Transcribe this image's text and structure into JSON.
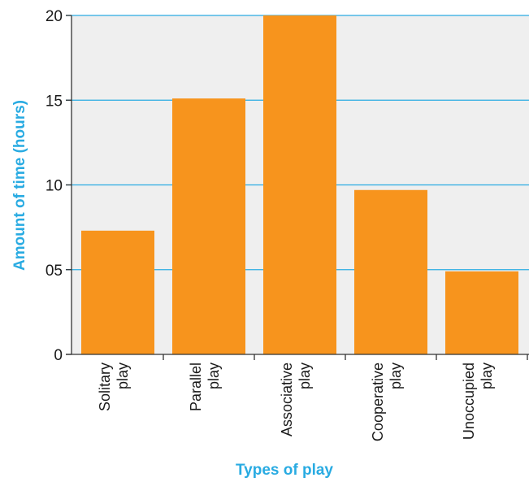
{
  "chart_data": {
    "type": "bar",
    "title": "",
    "xlabel": "Types of play",
    "ylabel": "Amount of time (hours)",
    "categories": [
      [
        "Solitary",
        "play"
      ],
      [
        "Parallel",
        "play"
      ],
      [
        "Associative",
        "play"
      ],
      [
        "Cooperative",
        "play"
      ],
      [
        "Unoccupied",
        "play"
      ]
    ],
    "values": [
      7.3,
      15.1,
      20,
      9.7,
      4.9
    ],
    "ylim": [
      0,
      20
    ],
    "yticks": [
      0,
      5,
      10,
      15,
      20
    ],
    "ytick_labels": [
      "0",
      "05",
      "10",
      "15",
      "20"
    ],
    "grid": true,
    "colors": {
      "bar": "#f7941d",
      "plot_background": "#efefef",
      "gridline": "#29abe2",
      "axis_title": "#29abe2",
      "axis_line": "#333333"
    }
  }
}
